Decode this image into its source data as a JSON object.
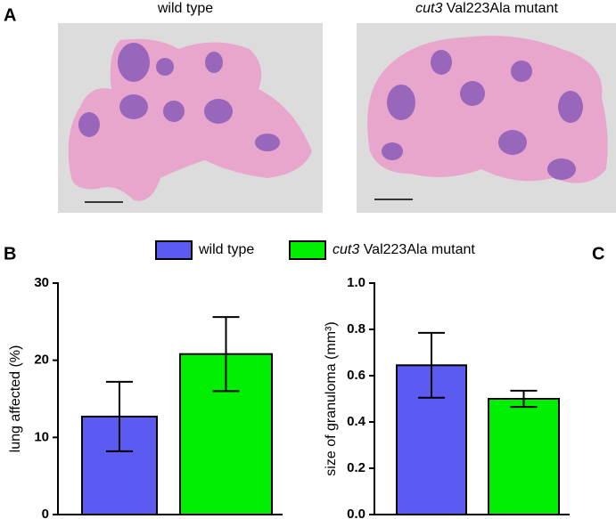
{
  "figure": {
    "panels": [
      "A",
      "B",
      "C"
    ],
    "captions": [
      "wild type",
      "cut3 Val223Ala mutant"
    ]
  },
  "chart_data": [
    {
      "type": "bar",
      "y_label": "lung affected (%)",
      "ylim": [
        0,
        30
      ],
      "yticks": [
        0,
        10,
        20,
        30
      ],
      "series": [
        {
          "name": "wild type",
          "color": "#5b5bf2",
          "values": [
            12.7
          ],
          "errors": [
            4.5
          ]
        },
        {
          "name": "cut3 Val223Ala mutant",
          "color": "#00ee00",
          "values": [
            20.8
          ],
          "errors": [
            4.8
          ]
        }
      ]
    },
    {
      "type": "bar",
      "y_label": "size of granuloma (mm³)",
      "ylim": [
        0,
        1
      ],
      "yticks": [
        {
          "value": 0,
          "label": "0.0"
        },
        0.2,
        0.4,
        0.6,
        0.8,
        {
          "value": 1,
          "label": "1.0"
        }
      ],
      "series": [
        {
          "color": "#5b5bf2",
          "values": [
            0.645
          ],
          "errors": [
            0.14
          ]
        },
        {
          "color": "#00ee00",
          "values": [
            0.5
          ],
          "errors": [
            0.035
          ]
        }
      ]
    }
  ]
}
